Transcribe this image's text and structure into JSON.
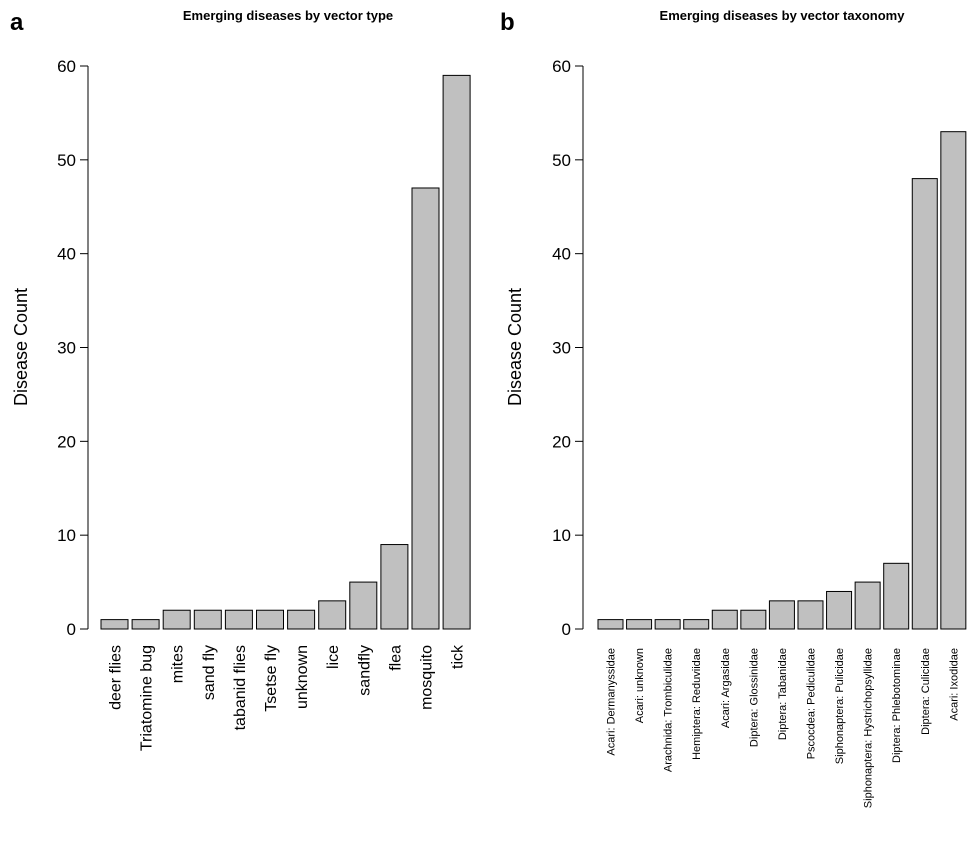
{
  "chart_data": [
    {
      "panel": "a",
      "type": "bar",
      "title": "Emerging diseases by vector type",
      "xlabel": "",
      "ylabel": "Disease Count",
      "ylim": [
        0,
        60
      ],
      "yticks": [
        0,
        10,
        20,
        30,
        40,
        50,
        60
      ],
      "categories": [
        "deer flies",
        "Triatomine bug",
        "mites",
        "sand fly",
        "tabanid flies",
        "Tsetse fly",
        "unknown",
        "lice",
        "sandfly",
        "flea",
        "mosquito",
        "tick"
      ],
      "values": [
        1,
        1,
        2,
        2,
        2,
        2,
        2,
        3,
        5,
        9,
        47,
        59
      ],
      "bar_color": "#c0c0c0",
      "grid": false
    },
    {
      "panel": "b",
      "type": "bar",
      "title": "Emerging diseases by vector taxonomy",
      "xlabel": "",
      "ylabel": "Disease Count",
      "ylim": [
        0,
        60
      ],
      "yticks": [
        0,
        10,
        20,
        30,
        40,
        50,
        60
      ],
      "categories": [
        "Acari: Dermanyssidae",
        "Acari: unknown",
        "Arachnida: Trombiculidae",
        "Hemiptera: Reduviidae",
        "Acari: Argasidae",
        "Diptera: Glossinidae",
        "Diptera: Tabanidae",
        "Pscocdea: Pediculidae",
        "Siphonaptera: Pulicidae",
        "Siphonaptera: Hystrichopsyllidae",
        "Diptera: Phlebotominae",
        "Diptera: Culicidae",
        "Acari: Ixodidae"
      ],
      "values": [
        1,
        1,
        1,
        1,
        2,
        2,
        3,
        3,
        4,
        5,
        7,
        48,
        53
      ],
      "bar_color": "#c0c0c0",
      "grid": false
    }
  ]
}
